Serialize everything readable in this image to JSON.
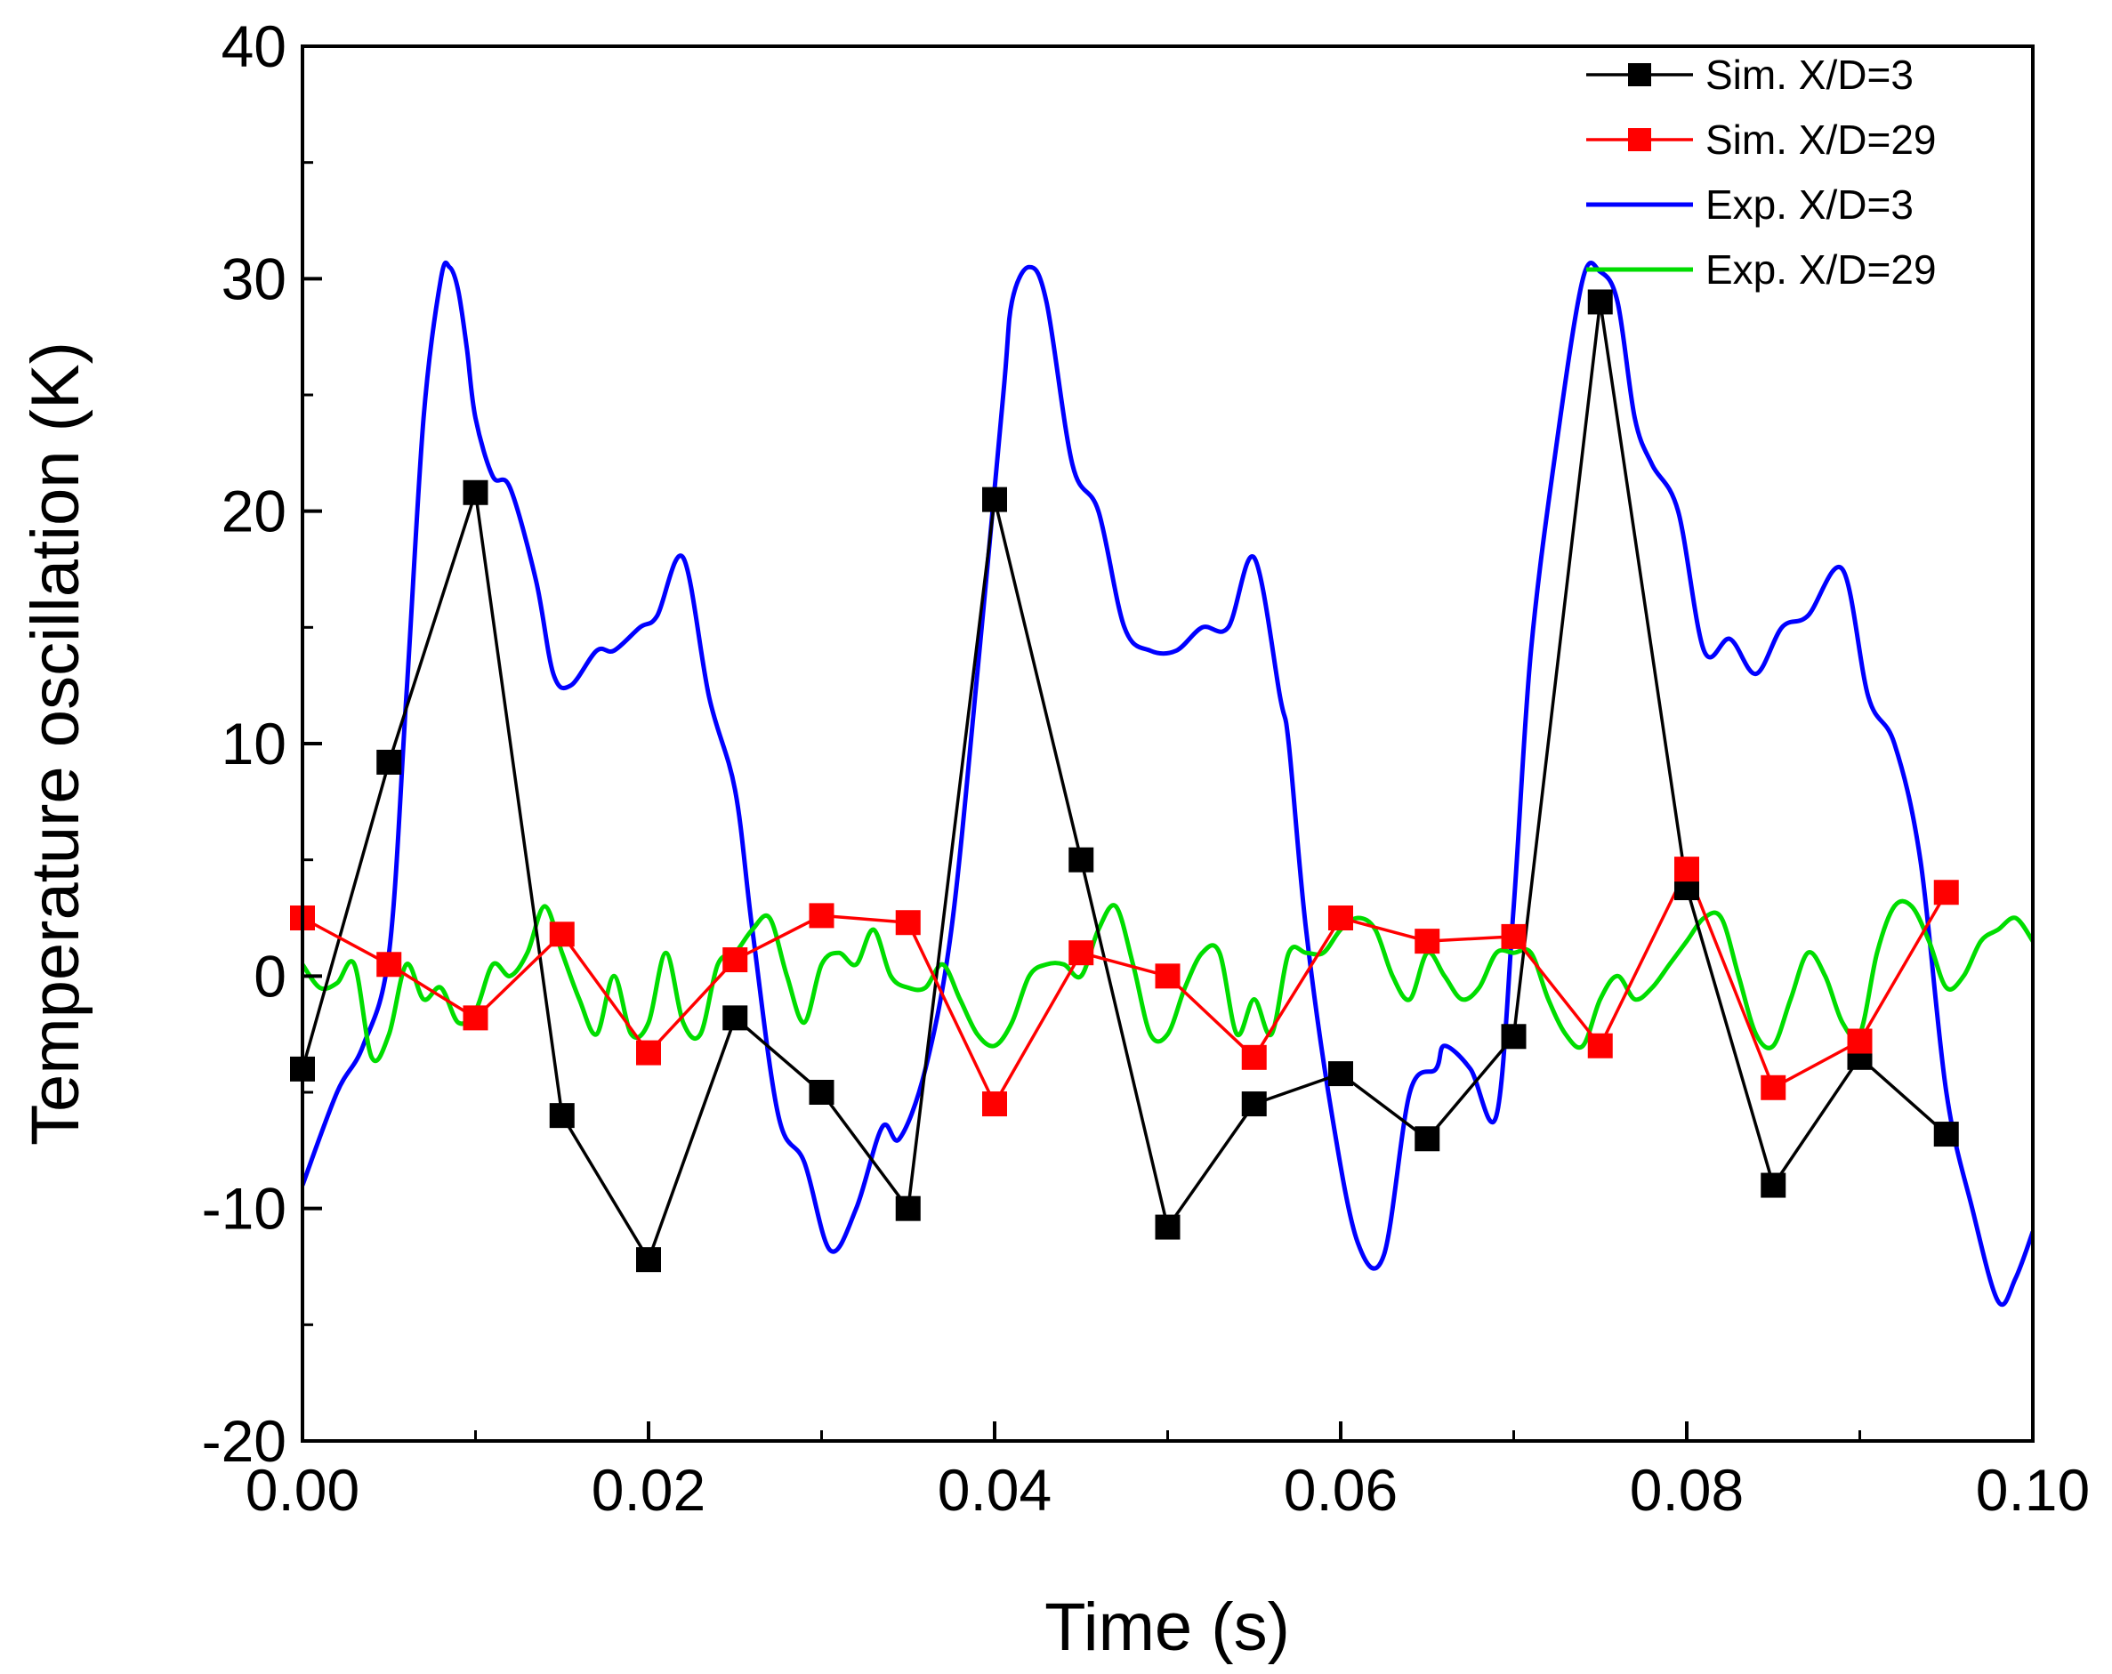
{
  "chart_data": {
    "type": "line",
    "title": "",
    "xlabel": "Time (s)",
    "ylabel": "Temperature oscillation (K)",
    "xlim": [
      0.0,
      0.1
    ],
    "ylim": [
      -20,
      40
    ],
    "grid": false,
    "legend_position": "top-right",
    "x_ticks": [
      0.0,
      0.02,
      0.04,
      0.06,
      0.08,
      0.1
    ],
    "x_tick_labels": [
      "0.00",
      "0.02",
      "0.04",
      "0.06",
      "0.08",
      "0.10"
    ],
    "y_ticks": [
      -20,
      -10,
      0,
      10,
      20,
      30,
      40
    ],
    "y_tick_labels": [
      "-20",
      "-10",
      "0",
      "10",
      "20",
      "30",
      "40"
    ],
    "series": [
      {
        "name": "Sim. X/D=3",
        "color": "#000000",
        "marker": "square",
        "x": [
          0.0,
          0.005,
          0.01,
          0.015,
          0.02,
          0.025,
          0.03,
          0.035,
          0.04,
          0.045,
          0.05,
          0.055,
          0.06,
          0.065,
          0.07,
          0.075,
          0.08,
          0.085,
          0.09,
          0.095
        ],
        "y": [
          -4,
          9.2,
          20.8,
          -6,
          -12.2,
          -1.8,
          -5,
          -10,
          20.5,
          5,
          -10.8,
          -5.5,
          -4.2,
          -7,
          -2.6,
          29,
          3.8,
          -9,
          -3.5,
          -6.8
        ]
      },
      {
        "name": "Sim. X/D=29",
        "color": "#ff0000",
        "marker": "square",
        "x": [
          0.0,
          0.005,
          0.01,
          0.015,
          0.02,
          0.025,
          0.03,
          0.035,
          0.04,
          0.045,
          0.05,
          0.055,
          0.06,
          0.065,
          0.07,
          0.075,
          0.08,
          0.085,
          0.09,
          0.095
        ],
        "y": [
          2.5,
          0.5,
          -1.8,
          1.8,
          -3.3,
          0.7,
          2.6,
          2.3,
          -5.5,
          1,
          0,
          -3.5,
          2.5,
          1.5,
          1.7,
          -3,
          4.6,
          -4.8,
          -2.8,
          3.6
        ]
      },
      {
        "name": "Exp. X/D=3",
        "color": "#0000ff",
        "marker": "none",
        "x": [
          0.0,
          0.002,
          0.0035,
          0.005,
          0.006,
          0.007,
          0.008,
          0.0085,
          0.009,
          0.0095,
          0.01,
          0.011,
          0.012,
          0.0135,
          0.0145,
          0.0155,
          0.017,
          0.018,
          0.0195,
          0.0205,
          0.022,
          0.0235,
          0.025,
          0.026,
          0.0275,
          0.029,
          0.0305,
          0.032,
          0.0335,
          0.0345,
          0.036,
          0.0375,
          0.039,
          0.0405,
          0.041,
          0.042,
          0.043,
          0.0445,
          0.046,
          0.0475,
          0.049,
          0.0505,
          0.052,
          0.0535,
          0.055,
          0.0565,
          0.057,
          0.058,
          0.0595,
          0.061,
          0.0625,
          0.064,
          0.0655,
          0.066,
          0.0675,
          0.069,
          0.07,
          0.071,
          0.0725,
          0.074,
          0.075,
          0.076,
          0.077,
          0.078,
          0.0795,
          0.081,
          0.0825,
          0.084,
          0.0855,
          0.087,
          0.089,
          0.0905,
          0.092,
          0.0935,
          0.095,
          0.0965,
          0.098,
          0.099,
          0.1
        ],
        "y": [
          -9,
          -5,
          -3,
          1,
          12,
          24,
          30,
          30.5,
          29.5,
          27,
          24,
          21.5,
          21,
          17,
          13,
          12.5,
          14,
          14,
          15,
          15.5,
          18,
          12,
          8,
          2,
          -6,
          -8,
          -11.8,
          -10,
          -6.5,
          -7,
          -4,
          2,
          13,
          25,
          29,
          30.5,
          29,
          22,
          20,
          15,
          14,
          14,
          15,
          15,
          18,
          12,
          10,
          2,
          -6,
          -11.5,
          -12,
          -5,
          -4,
          -3,
          -4,
          -6,
          3,
          14,
          23,
          30,
          30.3,
          29,
          24,
          22,
          20,
          14,
          14.5,
          13,
          15,
          15.5,
          17.5,
          12,
          10,
          5,
          -5,
          -10,
          -14,
          -13,
          -11
        ]
      },
      {
        "name": "Exp. X/D=29",
        "color": "#00dd00",
        "marker": "none",
        "x": [
          0.0,
          0.001,
          0.002,
          0.003,
          0.004,
          0.005,
          0.006,
          0.007,
          0.008,
          0.009,
          0.01,
          0.011,
          0.012,
          0.013,
          0.014,
          0.015,
          0.016,
          0.017,
          0.018,
          0.019,
          0.02,
          0.021,
          0.022,
          0.023,
          0.024,
          0.025,
          0.026,
          0.027,
          0.028,
          0.029,
          0.03,
          0.031,
          0.032,
          0.033,
          0.034,
          0.035,
          0.036,
          0.037,
          0.038,
          0.039,
          0.04,
          0.041,
          0.042,
          0.043,
          0.044,
          0.045,
          0.046,
          0.047,
          0.048,
          0.049,
          0.05,
          0.051,
          0.052,
          0.053,
          0.054,
          0.055,
          0.056,
          0.057,
          0.058,
          0.059,
          0.06,
          0.061,
          0.062,
          0.063,
          0.064,
          0.065,
          0.066,
          0.067,
          0.068,
          0.069,
          0.07,
          0.071,
          0.072,
          0.073,
          0.074,
          0.075,
          0.076,
          0.077,
          0.078,
          0.079,
          0.08,
          0.081,
          0.082,
          0.083,
          0.084,
          0.085,
          0.086,
          0.087,
          0.088,
          0.089,
          0.09,
          0.091,
          0.092,
          0.093,
          0.094,
          0.095,
          0.096,
          0.097,
          0.098,
          0.099,
          0.1
        ],
        "y": [
          0.5,
          -0.5,
          -0.3,
          0.5,
          -3.5,
          -2.5,
          0.5,
          -1,
          -0.5,
          -2,
          -1.5,
          0.5,
          0,
          1,
          3,
          1,
          -1,
          -2.5,
          0,
          -2.5,
          -2,
          1,
          -2,
          -2.5,
          0.5,
          1,
          2,
          2.5,
          0,
          -2,
          0.5,
          1,
          0.5,
          2,
          0,
          -0.5,
          -0.5,
          0.5,
          -1,
          -2.5,
          -3,
          -2,
          0,
          0.5,
          0.5,
          0,
          2,
          3,
          0.5,
          -2.5,
          -2.5,
          -0.5,
          1,
          1,
          -2.5,
          -1,
          -2.5,
          1,
          1,
          1,
          2,
          2.5,
          2,
          0,
          -1,
          1,
          0,
          -1,
          -0.5,
          1,
          1,
          1,
          -1,
          -2.5,
          -3,
          -1,
          0,
          -1,
          -0.5,
          0.5,
          1.5,
          2.5,
          2.5,
          0,
          -2.5,
          -3,
          -1,
          1,
          0,
          -2,
          -2.5,
          1,
          3,
          3,
          1.5,
          -0.5,
          0,
          1.5,
          2,
          2.5,
          1.5
        ]
      }
    ]
  }
}
